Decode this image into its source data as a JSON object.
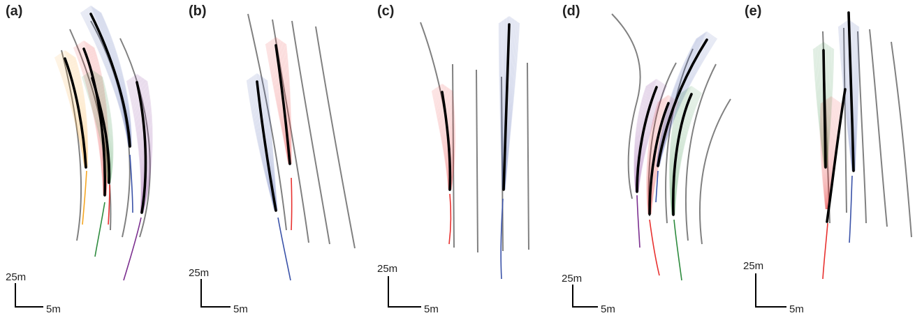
{
  "colors": {
    "orange": "#f5a623",
    "red": "#e8312f",
    "green": "#2e8b3e",
    "blue": "#3a52a8",
    "purple": "#7b2f8f",
    "road": "#808080",
    "ground_truth": "#000000"
  },
  "scale_bar": {
    "vertical": "25m",
    "horizontal": "5m"
  },
  "panels": [
    {
      "label": "(a)",
      "agents": [
        "orange",
        "red",
        "green",
        "blue",
        "purple"
      ]
    },
    {
      "label": "(b)",
      "agents": [
        "red",
        "blue"
      ]
    },
    {
      "label": "(c)",
      "agents": [
        "red",
        "blue"
      ]
    },
    {
      "label": "(d)",
      "agents": [
        "purple",
        "red",
        "blue",
        "green"
      ]
    },
    {
      "label": "(e)",
      "agents": [
        "green",
        "red",
        "blue"
      ]
    }
  ]
}
